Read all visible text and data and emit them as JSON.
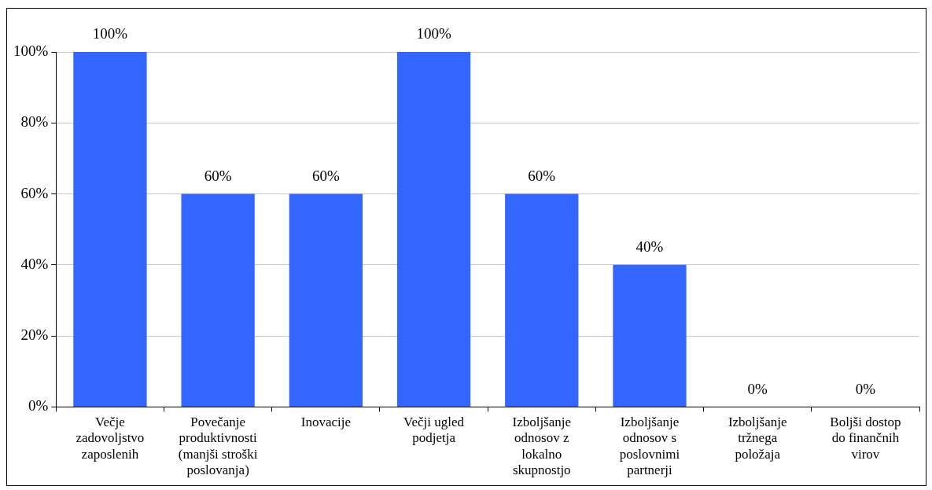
{
  "chart_data": {
    "type": "bar",
    "categories": [
      "Večje zadovoljstvo zaposlenih",
      "Povečanje produktivnosti (manjši stroški poslovanja)",
      "Inovacije",
      "Večji ugled podjetja",
      "Izboljšanje odnosov z lokalno skupnostjo",
      "Izboljšanje odnosov s poslovnimi partnerji",
      "Izboljšanje tržnega položaja",
      "Boljši dostop do finančnih virov"
    ],
    "values": [
      100,
      60,
      60,
      100,
      60,
      40,
      0,
      0
    ],
    "value_labels": [
      "100%",
      "60%",
      "60%",
      "100%",
      "60%",
      "40%",
      "0%",
      "0%"
    ],
    "color": "#3366ff",
    "ylim": [
      0,
      100
    ],
    "yticks": [
      {
        "value": 0,
        "label": "0%"
      },
      {
        "value": 20,
        "label": "20%"
      },
      {
        "value": 40,
        "label": "40%"
      },
      {
        "value": 60,
        "label": "60%"
      },
      {
        "value": 80,
        "label": "80%"
      },
      {
        "value": 100,
        "label": "100%"
      }
    ],
    "grid": "y",
    "legend": false
  }
}
